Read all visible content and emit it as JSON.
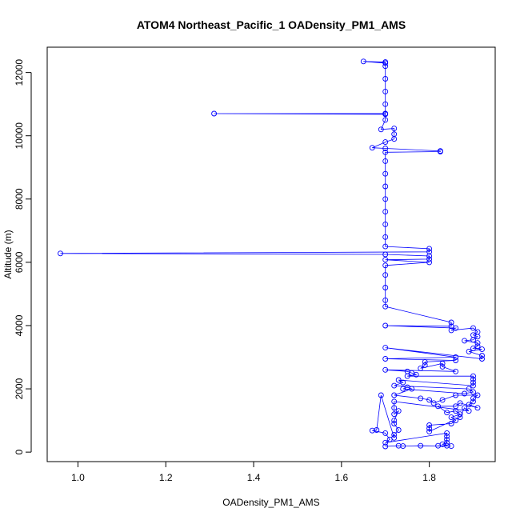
{
  "chart_data": {
    "type": "scatter",
    "title": "ATOM4 Northeast_Pacific_1 OADensity_PM1_AMS",
    "xlabel": "OADensity_PM1_AMS",
    "ylabel": "Altitude (m)",
    "xlim": [
      0.93,
      1.95
    ],
    "ylim": [
      -300,
      12800
    ],
    "xticks": [
      "1.0",
      "1.2",
      "1.4",
      "1.6",
      "1.8"
    ],
    "yticks": [
      "0",
      "2000",
      "4000",
      "6000",
      "8000",
      "10000",
      "12000"
    ],
    "series_color": "#0000ff",
    "marker": "open-circle",
    "connected": true,
    "series": [
      {
        "points": [
          [
            1.7,
            12300
          ],
          [
            1.65,
            12350
          ],
          [
            1.7,
            12330
          ],
          [
            1.7,
            12200
          ],
          [
            1.7,
            11800
          ],
          [
            1.7,
            11400
          ],
          [
            1.7,
            11000
          ],
          [
            1.7,
            10700
          ],
          [
            1.31,
            10700
          ],
          [
            1.7,
            10680
          ],
          [
            1.7,
            10500
          ],
          [
            1.69,
            10200
          ],
          [
            1.72,
            10230
          ],
          [
            1.72,
            10050
          ],
          [
            1.72,
            9900
          ],
          [
            1.7,
            9800
          ],
          [
            1.67,
            9620
          ],
          [
            1.7,
            9600
          ],
          [
            1.825,
            9520
          ],
          [
            1.825,
            9500
          ],
          [
            1.7,
            9480
          ],
          [
            1.7,
            9200
          ],
          [
            1.7,
            8800
          ],
          [
            1.7,
            8400
          ],
          [
            1.7,
            8000
          ],
          [
            1.7,
            7600
          ],
          [
            1.7,
            7200
          ],
          [
            1.7,
            6800
          ],
          [
            1.7,
            6500
          ],
          [
            1.8,
            6430
          ],
          [
            1.8,
            6330
          ],
          [
            0.96,
            6280
          ],
          [
            1.7,
            6250
          ],
          [
            1.8,
            6200
          ],
          [
            1.8,
            6100
          ],
          [
            1.7,
            6080
          ],
          [
            1.8,
            6000
          ],
          [
            1.7,
            5900
          ],
          [
            1.7,
            5600
          ],
          [
            1.7,
            5200
          ],
          [
            1.7,
            4800
          ],
          [
            1.7,
            4600
          ],
          [
            1.85,
            4100
          ],
          [
            1.85,
            3980
          ],
          [
            1.7,
            4000
          ],
          [
            1.86,
            3920
          ],
          [
            1.85,
            3850
          ],
          [
            1.9,
            3920
          ],
          [
            1.91,
            3800
          ],
          [
            1.9,
            3700
          ],
          [
            1.91,
            3650
          ],
          [
            1.9,
            3550
          ],
          [
            1.88,
            3520
          ],
          [
            1.91,
            3450
          ],
          [
            1.91,
            3350
          ],
          [
            1.9,
            3280
          ],
          [
            1.92,
            3250
          ],
          [
            1.89,
            3180
          ],
          [
            1.92,
            3050
          ],
          [
            1.92,
            2950
          ],
          [
            1.7,
            3300
          ],
          [
            1.86,
            3000
          ],
          [
            1.7,
            2950
          ],
          [
            1.86,
            2900
          ],
          [
            1.79,
            2850
          ],
          [
            1.79,
            2750
          ],
          [
            1.78,
            2650
          ],
          [
            1.83,
            2800
          ],
          [
            1.83,
            2700
          ],
          [
            1.86,
            2550
          ],
          [
            1.7,
            2600
          ],
          [
            1.75,
            2550
          ],
          [
            1.76,
            2500
          ],
          [
            1.77,
            2450
          ],
          [
            1.75,
            2400
          ],
          [
            1.9,
            2400
          ],
          [
            1.9,
            2300
          ],
          [
            1.9,
            2200
          ],
          [
            1.9,
            2100
          ],
          [
            1.73,
            2280
          ],
          [
            1.74,
            2200
          ],
          [
            1.72,
            2100
          ],
          [
            1.89,
            2000
          ],
          [
            1.9,
            1900
          ],
          [
            1.88,
            1850
          ],
          [
            1.74,
            2000
          ],
          [
            1.75,
            2050
          ],
          [
            1.76,
            2000
          ],
          [
            1.72,
            1800
          ],
          [
            1.78,
            1700
          ],
          [
            1.8,
            1650
          ],
          [
            1.81,
            1550
          ],
          [
            1.83,
            1650
          ],
          [
            1.86,
            1800
          ],
          [
            1.91,
            1800
          ],
          [
            1.9,
            1700
          ],
          [
            1.9,
            1600
          ],
          [
            1.89,
            1500
          ],
          [
            1.91,
            1400
          ],
          [
            1.87,
            1550
          ],
          [
            1.86,
            1450
          ],
          [
            1.82,
            1450
          ],
          [
            1.84,
            1250
          ],
          [
            1.86,
            1300
          ],
          [
            1.87,
            1200
          ],
          [
            1.85,
            1100
          ],
          [
            1.86,
            1000
          ],
          [
            1.85,
            900
          ],
          [
            1.8,
            850
          ],
          [
            1.8,
            750
          ],
          [
            1.8,
            650
          ],
          [
            1.87,
            1100
          ],
          [
            1.88,
            1400
          ],
          [
            1.89,
            1300
          ],
          [
            1.72,
            1600
          ],
          [
            1.72,
            1400
          ],
          [
            1.72,
            1200
          ],
          [
            1.73,
            1300
          ],
          [
            1.72,
            1000
          ],
          [
            1.72,
            900
          ],
          [
            1.73,
            700
          ],
          [
            1.72,
            550
          ],
          [
            1.72,
            450
          ],
          [
            1.69,
            1800
          ],
          [
            1.68,
            700
          ],
          [
            1.67,
            680
          ],
          [
            1.7,
            600
          ],
          [
            1.71,
            400
          ],
          [
            1.7,
            300
          ],
          [
            1.84,
            600
          ],
          [
            1.84,
            500
          ],
          [
            1.84,
            400
          ],
          [
            1.84,
            300
          ],
          [
            1.83,
            250
          ],
          [
            1.84,
            200
          ],
          [
            1.82,
            200
          ],
          [
            1.85,
            190
          ],
          [
            1.78,
            200
          ],
          [
            1.74,
            190
          ],
          [
            1.73,
            200
          ],
          [
            1.7,
            180
          ]
        ]
      }
    ]
  }
}
